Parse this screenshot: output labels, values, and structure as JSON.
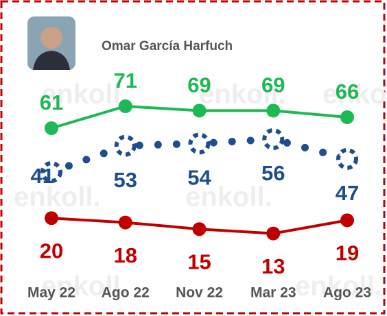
{
  "chart_data": {
    "type": "line",
    "subtitle": "Omar García Harfuch",
    "watermark": "enkoll.",
    "categories": [
      "May 22",
      "Ago 22",
      "Nov 22",
      "Mar 23",
      "Ago 23"
    ],
    "series": [
      {
        "color": "#1db954",
        "style": "solid",
        "values": [
          61,
          71,
          69,
          69,
          66
        ]
      },
      {
        "color": "#1f4e8c",
        "style": "dotted",
        "values": [
          41,
          53,
          54,
          56,
          47
        ]
      },
      {
        "color": "#c00000",
        "style": "solid",
        "values": [
          20,
          18,
          15,
          13,
          19
        ]
      }
    ]
  }
}
